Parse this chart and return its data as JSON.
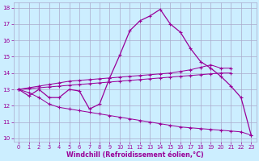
{
  "bg_color": "#cceeff",
  "line_color": "#990099",
  "grid_color": "#aaaacc",
  "ylim": [
    9.8,
    18.3
  ],
  "xlim": [
    -0.5,
    23.5
  ],
  "yticks": [
    10,
    11,
    12,
    13,
    14,
    15,
    16,
    17,
    18
  ],
  "xticks": [
    0,
    1,
    2,
    3,
    4,
    5,
    6,
    7,
    8,
    9,
    10,
    11,
    12,
    13,
    14,
    15,
    16,
    17,
    18,
    19,
    20,
    21,
    22,
    23
  ],
  "xlabel": "Windchill (Refroidissement éolien,°C)",
  "main_line_x": [
    0,
    1,
    2,
    3,
    4,
    5,
    6,
    7,
    8,
    9,
    10,
    11,
    12,
    13,
    14,
    15,
    16,
    17,
    18,
    19,
    20,
    21,
    22,
    23
  ],
  "main_line_y": [
    13.0,
    12.6,
    13.0,
    12.5,
    12.5,
    13.0,
    12.9,
    11.8,
    12.1,
    13.7,
    15.1,
    16.6,
    17.2,
    17.5,
    17.9,
    17.0,
    16.5,
    15.5,
    14.7,
    14.3,
    13.8,
    13.2,
    12.5,
    10.2
  ],
  "upper_line_x": [
    0,
    1,
    2,
    3,
    4,
    5,
    6,
    7,
    8,
    9,
    10,
    11,
    12,
    13,
    14,
    15,
    16,
    17,
    18,
    19,
    20,
    21,
    22,
    23
  ],
  "upper_line_y": [
    13.0,
    13.1,
    13.2,
    13.3,
    13.4,
    13.5,
    13.55,
    13.6,
    13.65,
    13.7,
    13.75,
    13.8,
    13.85,
    13.9,
    13.95,
    14.0,
    14.1,
    14.2,
    14.35,
    14.5,
    14.3,
    14.3,
    null,
    null
  ],
  "mid_line_x": [
    0,
    1,
    2,
    3,
    4,
    5,
    6,
    7,
    8,
    9,
    10,
    11,
    12,
    13,
    14,
    15,
    16,
    17,
    18,
    19,
    20,
    21
  ],
  "mid_line_y": [
    13.0,
    13.05,
    13.1,
    13.15,
    13.2,
    13.25,
    13.3,
    13.35,
    13.4,
    13.45,
    13.5,
    13.55,
    13.6,
    13.65,
    13.7,
    13.75,
    13.8,
    13.85,
    13.9,
    13.95,
    14.0,
    14.0
  ],
  "lower_line_x": [
    0,
    1,
    2,
    3,
    4,
    5,
    6,
    7,
    8,
    9,
    10,
    11,
    12,
    13,
    14,
    15,
    16,
    17,
    18,
    19,
    20,
    21,
    22,
    23
  ],
  "lower_line_y": [
    13.0,
    12.8,
    12.5,
    12.1,
    11.9,
    11.8,
    11.7,
    11.6,
    11.5,
    11.4,
    11.3,
    11.2,
    11.1,
    11.0,
    10.9,
    10.8,
    10.7,
    10.65,
    10.6,
    10.55,
    10.5,
    10.45,
    10.4,
    10.2
  ]
}
